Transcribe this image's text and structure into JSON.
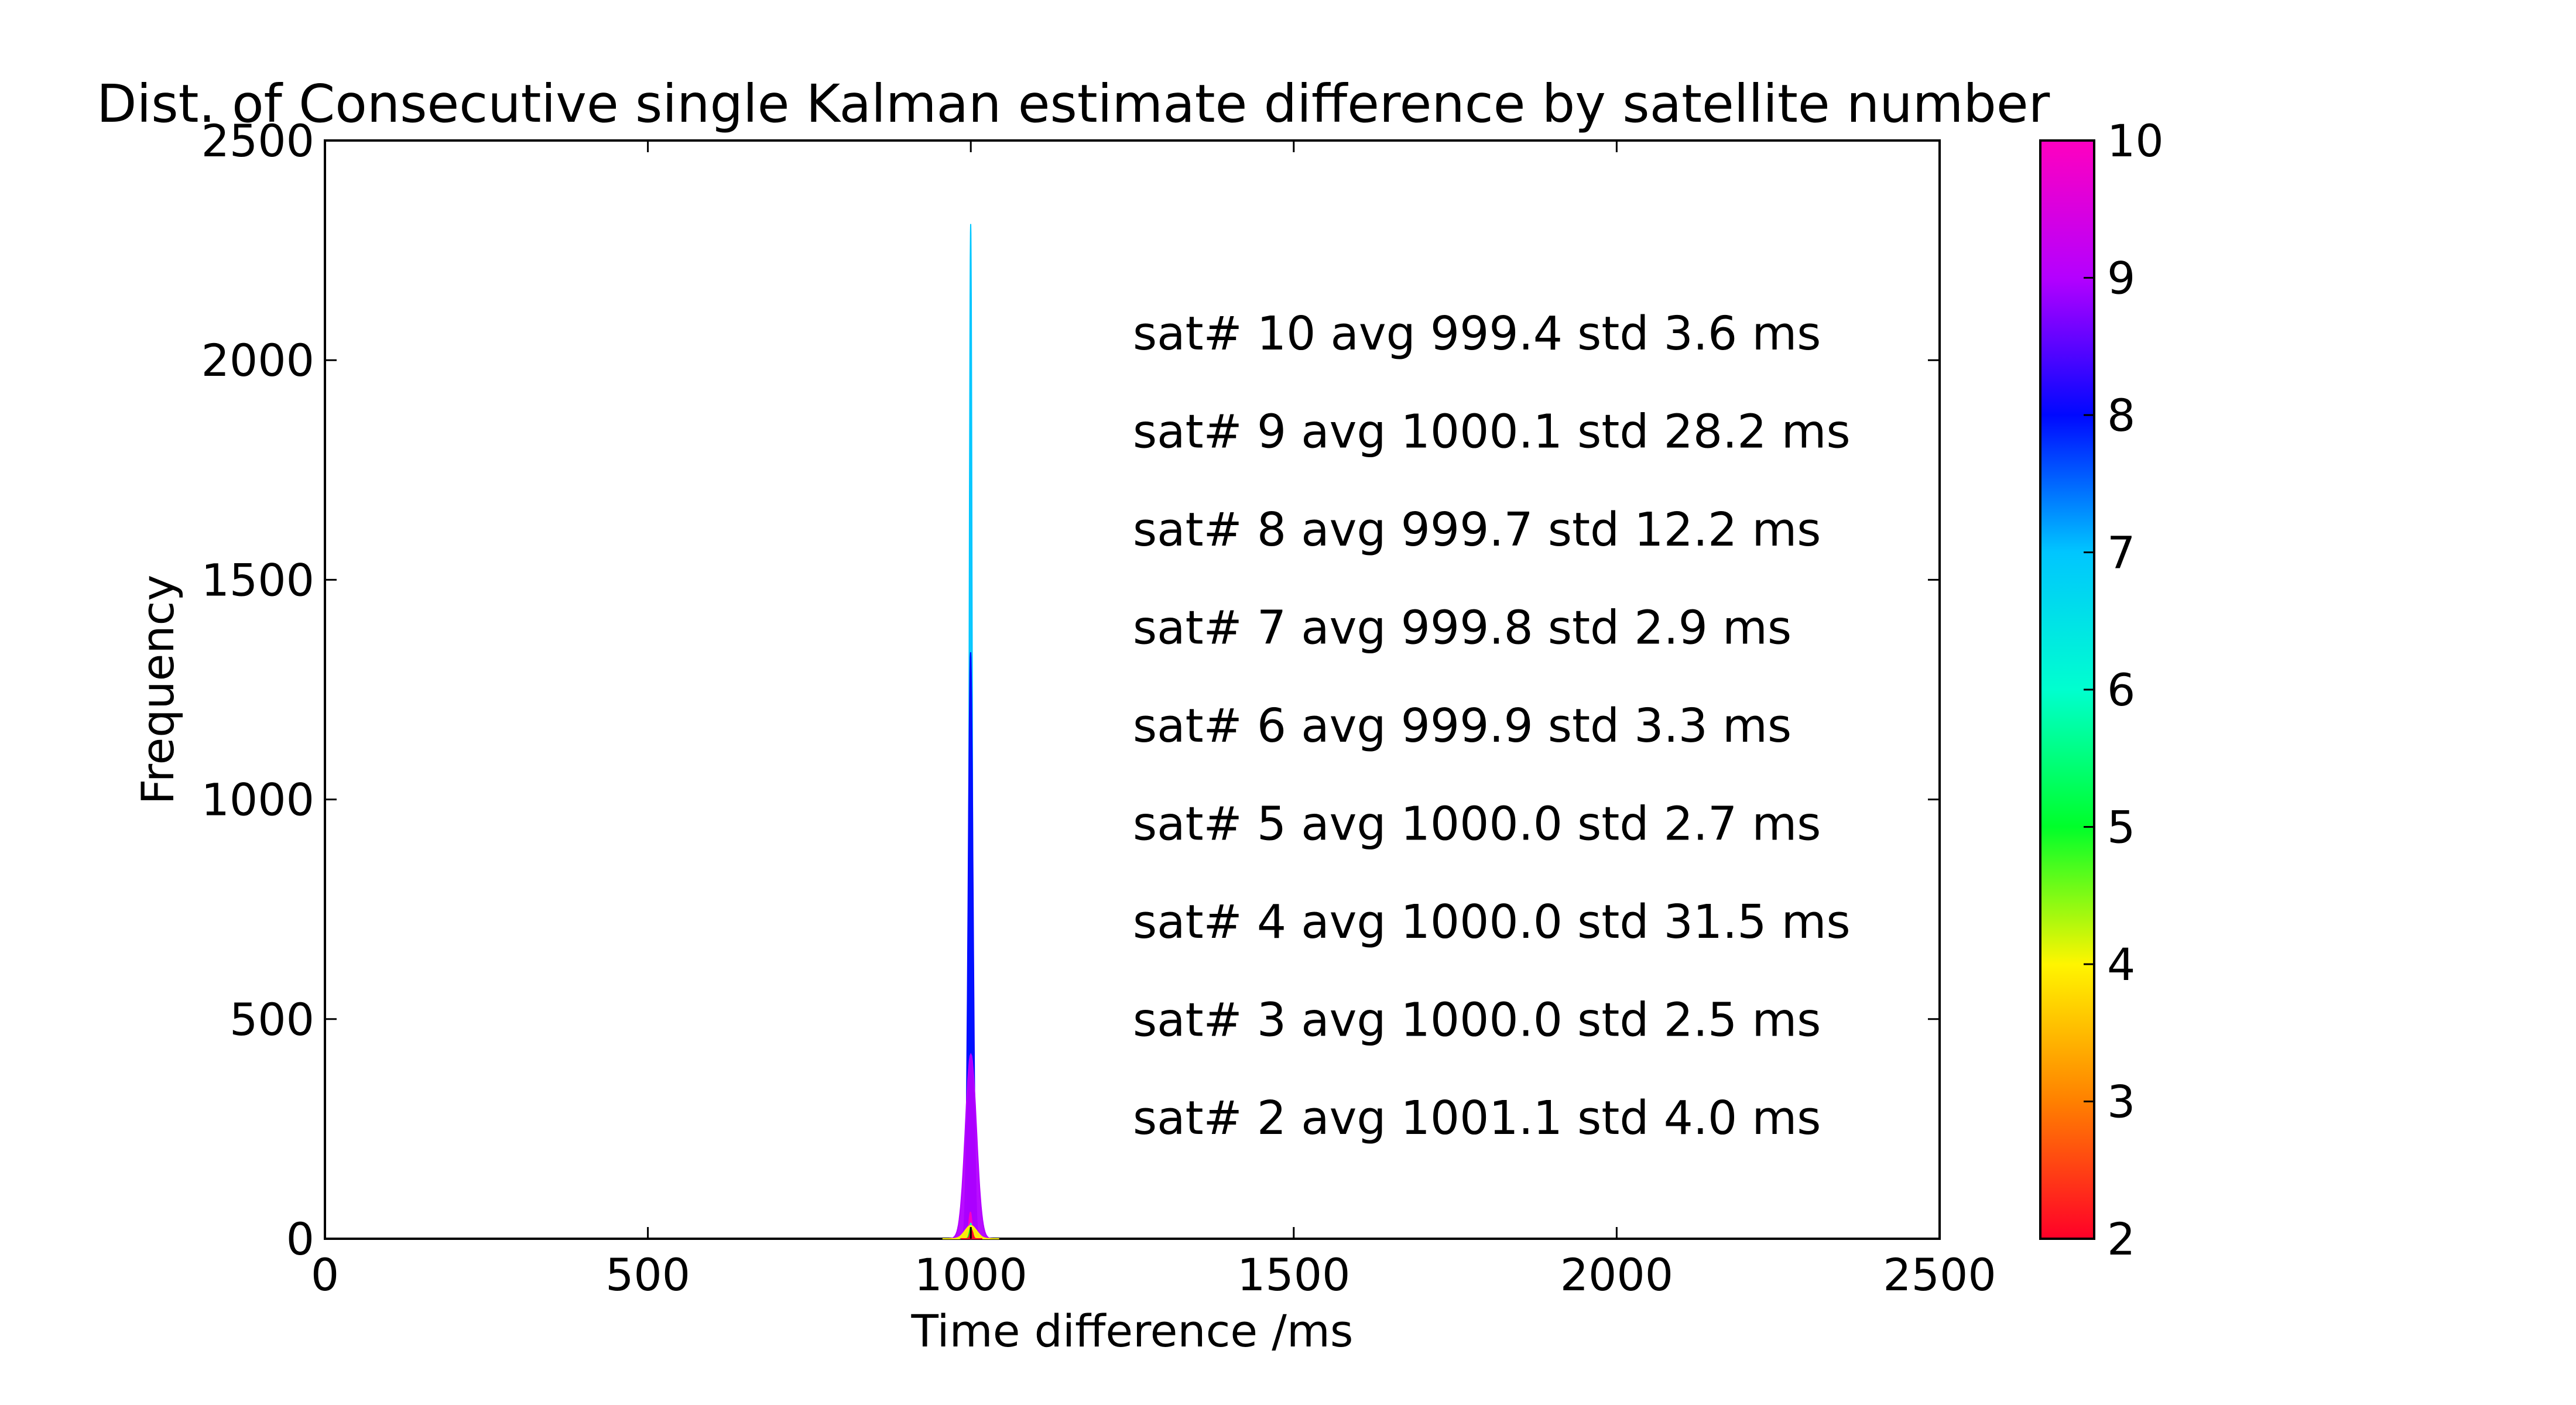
{
  "chart_data": {
    "type": "area",
    "title": "Dist. of Consecutive single Kalman estimate difference by satellite number",
    "xlabel": "Time difference /ms",
    "ylabel": "Frequency",
    "xlim": [
      0,
      2500
    ],
    "ylim": [
      0,
      2500
    ],
    "xticks": [
      0,
      500,
      1000,
      1500,
      2000,
      2500
    ],
    "yticks": [
      0,
      500,
      1000,
      1500,
      2000,
      2500
    ],
    "grid": false,
    "series": [
      {
        "name": "sat 2",
        "sat": 2,
        "avg": 1001.1,
        "std": 4.0,
        "peak": 20
      },
      {
        "name": "sat 3",
        "sat": 3,
        "avg": 1000.0,
        "std": 2.5,
        "peak": 25
      },
      {
        "name": "sat 4",
        "sat": 4,
        "avg": 1000.0,
        "std": 31.5,
        "peak": 30
      },
      {
        "name": "sat 5",
        "sat": 5,
        "avg": 1000.0,
        "std": 2.7,
        "peak": 25
      },
      {
        "name": "sat 6",
        "sat": 6,
        "avg": 999.9,
        "std": 3.3,
        "peak": 35
      },
      {
        "name": "sat 7",
        "sat": 7,
        "avg": 999.8,
        "std": 2.9,
        "peak": 2310
      },
      {
        "name": "sat 8",
        "sat": 8,
        "avg": 999.7,
        "std": 12.2,
        "peak": 1335
      },
      {
        "name": "sat 9",
        "sat": 9,
        "avg": 1000.1,
        "std": 28.2,
        "peak": 420
      },
      {
        "name": "sat 10",
        "sat": 10,
        "avg": 999.4,
        "std": 3.6,
        "peak": 60
      }
    ],
    "annotations": [
      "sat# 10 avg 999.4 std 3.6 ms",
      "sat# 9 avg 1000.1 std 28.2 ms",
      "sat# 8 avg 999.7 std 12.2 ms",
      "sat# 7 avg 999.8 std 2.9 ms",
      "sat# 6 avg 999.9 std 3.3 ms",
      "sat# 5 avg 1000.0 std 2.7 ms",
      "sat# 4 avg 1000.0 std 31.5 ms",
      "sat# 3 avg 1000.0 std 2.5 ms",
      "sat# 2 avg 1001.1 std 4.0 ms"
    ],
    "colorbar": {
      "range": [
        2,
        10
      ],
      "ticks": [
        2,
        3,
        4,
        5,
        6,
        7,
        8,
        9,
        10
      ],
      "colormap": "gist_rainbow",
      "stops": [
        "#ff0028",
        "#ff8000",
        "#fff500",
        "#00ff2a",
        "#00ffcf",
        "#00c6ff",
        "#0008ff",
        "#b400ff",
        "#ff00bf"
      ]
    }
  }
}
